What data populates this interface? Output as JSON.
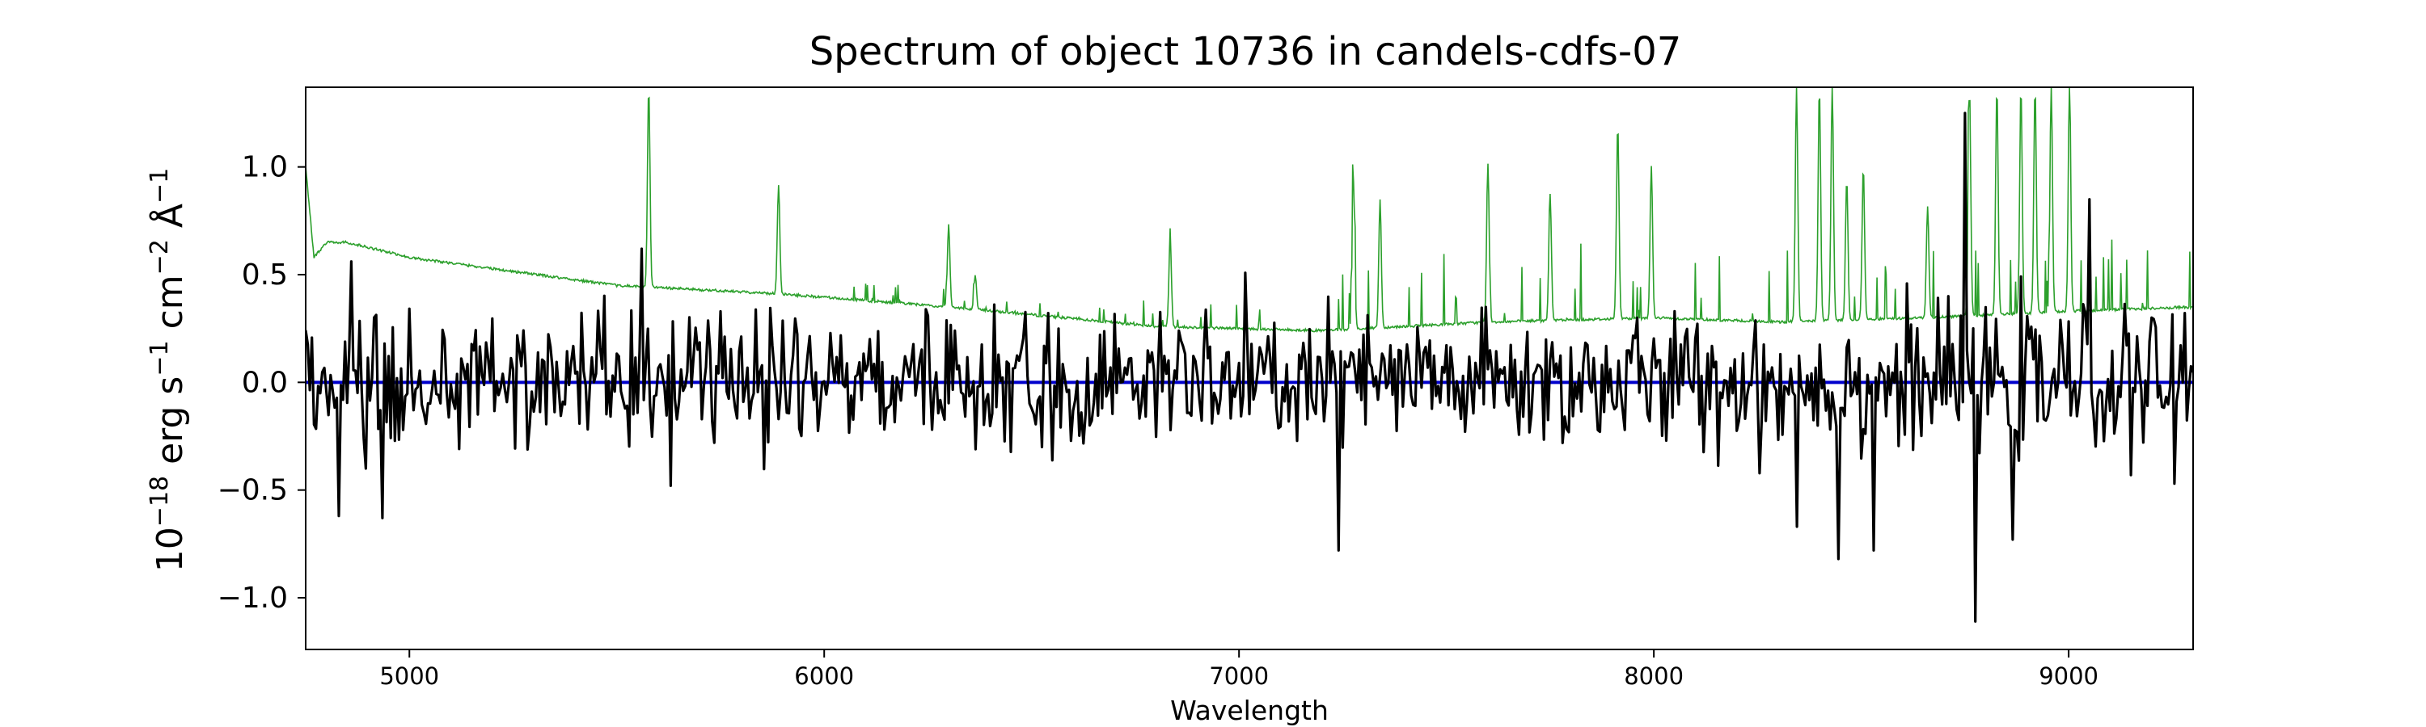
{
  "chart_data": {
    "type": "line",
    "title": "Spectrum of object 10736 in candels-cdfs-07",
    "xlabel": "Wavelength",
    "ylabel": {
      "prefix": "10",
      "prefix_exp": "−18",
      "unit1": " erg s",
      "unit1_exp": "−1",
      "unit2": " cm",
      "unit2_exp": "−2",
      "unit3": " Å",
      "unit3_exp": "−1"
    },
    "xlim": [
      4750,
      9300
    ],
    "ylim": [
      -1.24,
      1.37
    ],
    "xticks": [
      5000,
      6000,
      7000,
      8000,
      9000
    ],
    "xtick_labels": [
      "5000",
      "6000",
      "7000",
      "8000",
      "9000"
    ],
    "yticks": [
      -1.0,
      -0.5,
      0.0,
      0.5,
      1.0
    ],
    "ytick_labels": [
      "−1.0",
      "−0.5",
      "0.0",
      "0.5",
      "1.0"
    ],
    "grid": false,
    "colors": {
      "flux": "#000000",
      "error": "#2ca02c",
      "model": "#0000cc",
      "axes": "#000000"
    },
    "series": [
      {
        "key": "flux",
        "style": "thick-black-noisy",
        "x_start": 4750,
        "x_end": 9300,
        "step": 5,
        "baseline": 0.0,
        "typical_scatter": 0.22,
        "notable_points": [
          {
            "x": 4830,
            "y": -0.62
          },
          {
            "x": 4935,
            "y": -0.63
          },
          {
            "x": 5630,
            "y": -0.48
          },
          {
            "x": 5560,
            "y": 0.62
          },
          {
            "x": 7240,
            "y": -0.78
          },
          {
            "x": 8345,
            "y": -0.67
          },
          {
            "x": 8445,
            "y": -0.82
          },
          {
            "x": 8530,
            "y": -0.78
          },
          {
            "x": 8750,
            "y": 1.25
          },
          {
            "x": 8775,
            "y": -1.11
          },
          {
            "x": 8865,
            "y": -0.73
          },
          {
            "x": 9050,
            "y": 0.85
          },
          {
            "x": 9255,
            "y": -0.47
          }
        ]
      },
      {
        "key": "error",
        "style": "thin-green",
        "continuum": [
          {
            "x": 4750,
            "y": 1.0
          },
          {
            "x": 4770,
            "y": 0.58
          },
          {
            "x": 4800,
            "y": 0.65
          },
          {
            "x": 4850,
            "y": 0.65
          },
          {
            "x": 5000,
            "y": 0.58
          },
          {
            "x": 5500,
            "y": 0.45
          },
          {
            "x": 5900,
            "y": 0.41
          },
          {
            "x": 6300,
            "y": 0.35
          },
          {
            "x": 6800,
            "y": 0.26
          },
          {
            "x": 7000,
            "y": 0.25
          },
          {
            "x": 7200,
            "y": 0.24
          },
          {
            "x": 7600,
            "y": 0.28
          },
          {
            "x": 8000,
            "y": 0.3
          },
          {
            "x": 8300,
            "y": 0.28
          },
          {
            "x": 8650,
            "y": 0.3
          },
          {
            "x": 9000,
            "y": 0.33
          },
          {
            "x": 9300,
            "y": 0.35
          }
        ],
        "emission_lines": [
          {
            "x": 5577,
            "y": 1.37
          },
          {
            "x": 5890,
            "y": 0.92
          },
          {
            "x": 6300,
            "y": 0.73
          },
          {
            "x": 6364,
            "y": 0.5
          },
          {
            "x": 6834,
            "y": 0.67
          },
          {
            "x": 7276,
            "y": 0.93
          },
          {
            "x": 7340,
            "y": 0.85
          },
          {
            "x": 7600,
            "y": 1.02
          },
          {
            "x": 7750,
            "y": 0.88
          },
          {
            "x": 7913,
            "y": 1.2
          },
          {
            "x": 7994,
            "y": 1.0
          },
          {
            "x": 8344,
            "y": 1.37
          },
          {
            "x": 8399,
            "y": 1.37
          },
          {
            "x": 8430,
            "y": 1.37
          },
          {
            "x": 8465,
            "y": 0.95
          },
          {
            "x": 8505,
            "y": 1.0
          },
          {
            "x": 8660,
            "y": 0.82
          },
          {
            "x": 8761,
            "y": 1.37
          },
          {
            "x": 8827,
            "y": 1.37
          },
          {
            "x": 8885,
            "y": 1.37
          },
          {
            "x": 8919,
            "y": 1.37
          },
          {
            "x": 8958,
            "y": 1.37
          },
          {
            "x": 9002,
            "y": 1.37
          }
        ]
      },
      {
        "key": "model",
        "style": "blue-flat",
        "points": [
          {
            "x": 4750,
            "y": 0.0
          },
          {
            "x": 9300,
            "y": 0.0
          }
        ]
      }
    ]
  }
}
